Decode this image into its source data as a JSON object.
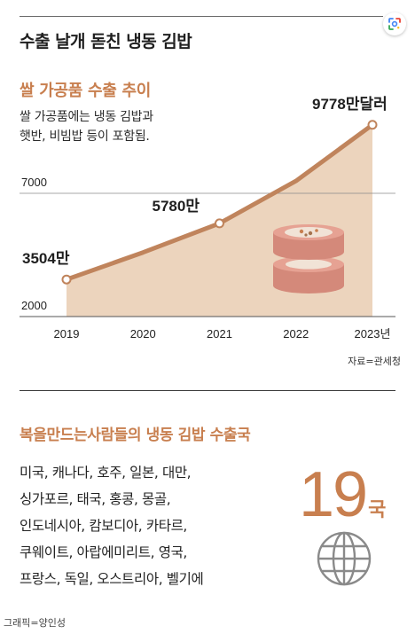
{
  "header": {
    "title": "수출 날개 돋친 냉동 김밥"
  },
  "chart_data": {
    "type": "area",
    "title": "쌀 가공품 수출 추이",
    "note_lines": [
      "쌀 가공품에는 냉동 김밥과",
      "햇반, 비빔밥 등이 포함됨."
    ],
    "x": [
      "2019",
      "2020",
      "2021",
      "2022",
      "2023년"
    ],
    "values": [
      3504,
      4600,
      5780,
      7500,
      9778
    ],
    "ylim": [
      2000,
      10000
    ],
    "yticks": [
      "2000",
      "7000"
    ],
    "ytick_values": [
      2000,
      7000
    ],
    "data_labels": [
      {
        "index": 0,
        "text": "3504만"
      },
      {
        "index": 2,
        "text": "5780만"
      },
      {
        "index": 4,
        "text": "9778만달러"
      }
    ],
    "grid": "horizontal at 7000",
    "colors": {
      "line": "#c0845c",
      "fill": "#ecd4bd",
      "marker": "#ffffff"
    }
  },
  "source": "자료=관세청",
  "exports": {
    "title": "복을만드는사람들의 냉동 김밥 수출국",
    "lines": [
      "미국, 캐나다, 호주, 일본, 대만,",
      "싱가포르, 태국, 홍콩, 몽골,",
      "인도네시아, 캄보디아, 카타르,",
      "쿠웨이트, 아랍에미리트, 영국,",
      "프랑스, 독일, 오스트리아, 벨기에"
    ],
    "count": "19",
    "count_unit": "국",
    "icon": "globe-icon"
  },
  "credit": "그래픽=양인성",
  "icons": {
    "lens": "google-lens-icon",
    "gimbap": "gimbap-illustration"
  },
  "colors": {
    "accent": "#c87f4f"
  }
}
